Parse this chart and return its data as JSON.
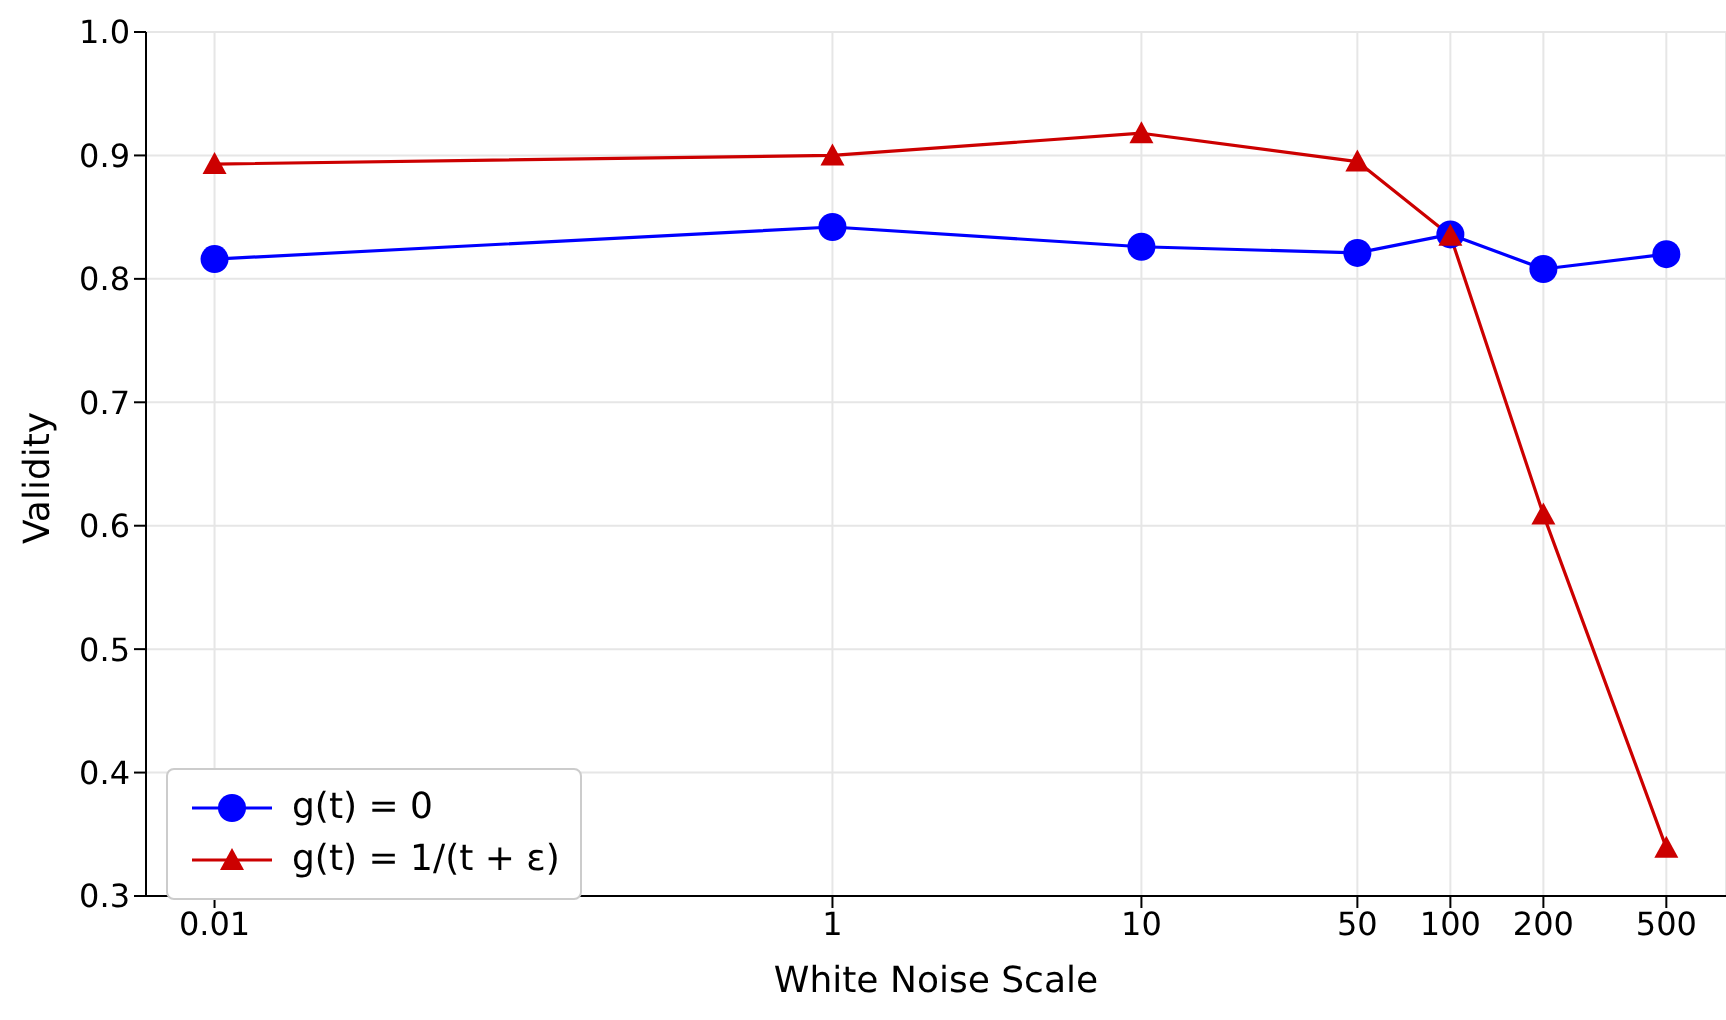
{
  "chart_data": {
    "type": "line",
    "xlabel": "White Noise Scale",
    "ylabel": "Validity",
    "x": [
      0.01,
      1,
      10,
      50,
      100,
      200,
      500
    ],
    "series": [
      {
        "name": "g(t) = 0",
        "color": "#0000ff",
        "marker": "circle",
        "values": [
          0.816,
          0.842,
          0.826,
          0.821,
          0.836,
          0.808,
          0.82
        ]
      },
      {
        "name": "g(t) = 1/(t + ε)",
        "color": "#cc0000",
        "marker": "triangle",
        "values": [
          0.893,
          0.9,
          0.918,
          0.895,
          0.835,
          0.609,
          0.339
        ]
      }
    ],
    "log": "x",
    "xlim": [
      0.006,
      780
    ],
    "xticks": [
      0.01,
      1,
      10,
      50,
      100,
      200,
      500
    ],
    "ylim": [
      0.3,
      1.0
    ],
    "yticks": [
      {
        "value": 0.3,
        "label": "0.3"
      },
      {
        "value": 0.4,
        "label": "0.4"
      },
      {
        "value": 0.5,
        "label": "0.5"
      },
      {
        "value": 0.6,
        "label": "0.6"
      },
      {
        "value": 0.7,
        "label": "0.7"
      },
      {
        "value": 0.8,
        "label": "0.8"
      },
      {
        "value": 0.9,
        "label": "0.9"
      },
      {
        "value": 1.0,
        "label": "1.0"
      }
    ],
    "grid": true,
    "legend": "bottom left"
  }
}
